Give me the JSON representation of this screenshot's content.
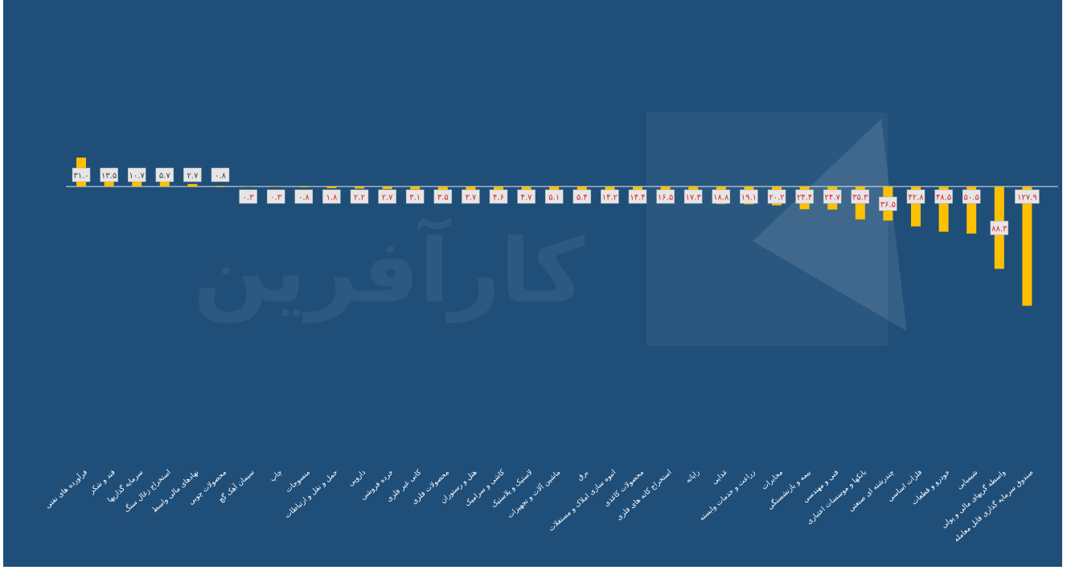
{
  "chart_data": {
    "type": "bar",
    "categories": [
      "فرآورده های نفتی",
      "قند و شکر",
      "سرمایه گذاریها",
      "استخراج زغال سنگ",
      "نهادهای مالی واسط",
      "محصولات چوبی",
      "سیمان آهک گچ",
      "چاپ",
      "منسوجات",
      "حمل و نقل و ارتباطات",
      "دارویی",
      "خرده فروشی",
      "کانی غیر فلزی",
      "محصولات فلزی",
      "هتل و رستوران",
      "کاشی و سرامیک",
      "لاستیک و پلاستیک",
      "ماشین آلات و تجهیزات",
      "برق",
      "انبوه سازی املاک و مستغلات",
      "محصولات کاغذی",
      "استخراج کانه های فلزی",
      "رایانه",
      "غذایی",
      "زراعت و خدمات وابسته",
      "مخابرات",
      "بیمه و بازنشستگی",
      "فنی و مهندسی",
      "بانکها و موسسات اعتباری",
      "چندرشته ای صنعتی",
      "فلزات اساسی",
      "خودرو و قطعات",
      "شیمیایی",
      "واسطه گریهای مالی و پولی",
      "صندوق سرمایه گذاری قابل معامله"
    ],
    "values": [
      31.0,
      13.5,
      10.7,
      5.7,
      2.7,
      0.8,
      -0.3,
      -0.3,
      -0.8,
      -1.8,
      -2.2,
      -2.7,
      -3.1,
      -3.5,
      -3.7,
      -4.6,
      -4.7,
      -5.1,
      -5.4,
      -14.2,
      -14.4,
      -16.5,
      -17.3,
      -18.8,
      -19.1,
      -20.2,
      -24.4,
      -24.7,
      -35.3,
      -36.5,
      -42.8,
      -48.5,
      -50.5,
      -88.3,
      -127.9
    ],
    "value_labels": [
      "۳۱.۰",
      "۱۳.۵",
      "۱۰.۷",
      "۵.۷",
      "۲.۷",
      "۰.۸",
      "۰.۳",
      "۰.۳",
      "۰.۸",
      "۱.۸",
      "۲.۲",
      "۲.۷",
      "۳.۱",
      "۳.۵",
      "۳.۷",
      "۴.۶",
      "۴.۷",
      "۵.۱",
      "۵.۴",
      "۱۴.۲",
      "۱۴.۴",
      "۱۶.۵",
      "۱۷.۳",
      "۱۸.۸",
      "۱۹.۱",
      "۲۰.۲",
      "۲۴.۴",
      "۲۴.۷",
      "۳۵.۳",
      "۳۶.۵",
      "۴۲.۸",
      "۴۸.۵",
      "۵۰.۵",
      "۸۸.۳",
      "۱۲۷.۹"
    ],
    "title": "",
    "xlabel": "",
    "ylabel": "",
    "grid": false,
    "legend": "none",
    "watermark": "کارآفرین",
    "colors": {
      "background": "#1f4e79",
      "bar": "#ffc000",
      "label_box": "#e6e6e6",
      "positive_text": "#404040",
      "negative_text": "#e0202a",
      "axis": "#dfe8f2"
    }
  }
}
